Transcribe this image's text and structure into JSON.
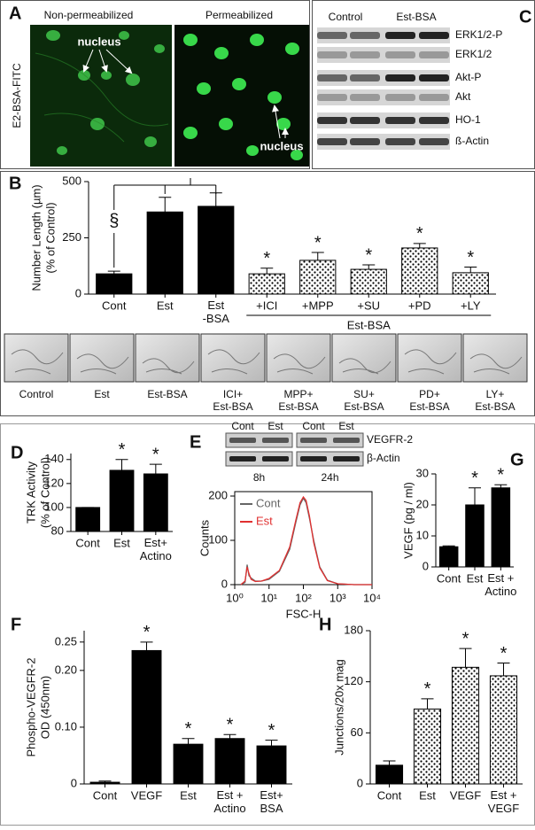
{
  "panel_a": {
    "label": "A",
    "side_label": "E2-BSA-FITC",
    "images": [
      "Non-permeabilized",
      "Permeabilized"
    ],
    "nucleus_labels": [
      "nucleus",
      "nucleus"
    ]
  },
  "panel_c": {
    "label": "C",
    "columns": [
      "Control",
      "Est-BSA"
    ],
    "rows": [
      "ERK1/2-P",
      "ERK1/2",
      "Akt-P",
      "Akt",
      "HO-1",
      "ß-Actin"
    ]
  },
  "panel_b_images": [
    "Control",
    "Est",
    "Est-BSA",
    "ICI+\nEst-BSA",
    "MPP+\nEst-BSA",
    "SU+\nEst-BSA",
    "PD+\nEst-BSA",
    "LY+\nEst-BSA"
  ],
  "panel_e_blot": {
    "label": "E",
    "lanes": [
      "Cont",
      "Est",
      "Cont",
      "Est"
    ],
    "rows": [
      "VEGFR-2",
      "β-Actin"
    ],
    "times": [
      "8h",
      "24h"
    ]
  },
  "chart_data": [
    {
      "type": "bar",
      "panel": "B",
      "y_label": [
        "Number Length (µm)",
        "(% of Control)"
      ],
      "categories": [
        "Cont",
        "Est",
        "Est\n-BSA",
        "+ICI",
        "+MPP",
        "+SU",
        "+PD",
        "+LY"
      ],
      "values": [
        90,
        365,
        390,
        90,
        150,
        110,
        205,
        95
      ],
      "errors": [
        12,
        65,
        60,
        25,
        35,
        20,
        20,
        25
      ],
      "bar_styles": [
        "solid",
        "solid",
        "solid",
        "dotted",
        "dotted",
        "dotted",
        "dotted",
        "dotted"
      ],
      "annotations": [
        null,
        null,
        null,
        "*",
        "*",
        "*",
        "*",
        "*"
      ],
      "bracket_label": "§",
      "group_label": "Est-BSA",
      "ylim": [
        0,
        500
      ],
      "yticks": [
        0,
        250,
        500
      ]
    },
    {
      "type": "bar",
      "panel": "D",
      "y_label": [
        "TRK Activity",
        "(% of Control)"
      ],
      "categories": [
        "Cont",
        "Est",
        "Est+\nActino"
      ],
      "values": [
        100,
        131,
        128
      ],
      "errors": [
        0,
        9,
        8
      ],
      "bar_styles": [
        "solid",
        "solid",
        "solid"
      ],
      "annotations": [
        null,
        "*",
        "*"
      ],
      "ylim": [
        80,
        145
      ],
      "yticks": [
        80,
        100,
        120,
        140
      ]
    },
    {
      "type": "line",
      "logx": true,
      "x_label": "FSC-H",
      "y_label": [
        "Counts"
      ],
      "x": [
        1.5,
        2,
        2.3,
        2.6,
        3,
        4,
        6,
        10,
        20,
        40,
        60,
        80,
        100,
        120,
        150,
        200,
        300,
        500,
        1000,
        3000,
        10000
      ],
      "series": [
        {
          "name": "Cont",
          "color": "#666666",
          "values": [
            0,
            5,
            45,
            20,
            15,
            8,
            8,
            12,
            30,
            80,
            140,
            180,
            195,
            185,
            150,
            100,
            40,
            10,
            2,
            0,
            0
          ]
        },
        {
          "name": "Est",
          "color": "#e03030",
          "values": [
            0,
            8,
            40,
            25,
            12,
            7,
            8,
            14,
            32,
            85,
            145,
            185,
            198,
            190,
            155,
            95,
            38,
            9,
            2,
            0,
            0
          ]
        }
      ],
      "xlim": [
        1,
        10000
      ],
      "xticks": [
        {
          "value": 1,
          "label": "10⁰"
        },
        {
          "value": 10,
          "label": "10¹"
        },
        {
          "value": 100,
          "label": "10²"
        },
        {
          "value": 1000,
          "label": "10³"
        },
        {
          "value": 10000,
          "label": "10⁴"
        }
      ],
      "ylim": [
        0,
        210
      ],
      "yticks": [
        0,
        100,
        200
      ]
    },
    {
      "type": "bar",
      "panel": "G",
      "y_label": [
        "VEGF (pg  / ml)"
      ],
      "categories": [
        "Cont",
        "Est",
        "Est +\nActino"
      ],
      "values": [
        6.5,
        20,
        25.5
      ],
      "errors": [
        0.3,
        5.5,
        1
      ],
      "bar_styles": [
        "solid",
        "solid",
        "solid"
      ],
      "annotations": [
        null,
        "*",
        "*"
      ],
      "ylim": [
        0,
        30
      ],
      "yticks": [
        0,
        10,
        20,
        30
      ]
    },
    {
      "type": "bar",
      "panel": "F",
      "y_label": [
        "Phospho-VEGFR-2",
        "OD (450nm)"
      ],
      "categories": [
        "Cont",
        "VEGF",
        "Est",
        "Est +\nActino",
        "Est+\nBSA"
      ],
      "values": [
        0.003,
        0.235,
        0.07,
        0.08,
        0.067
      ],
      "errors": [
        0.002,
        0.015,
        0.01,
        0.007,
        0.01
      ],
      "bar_styles": [
        "solid",
        "solid",
        "solid",
        "solid",
        "solid"
      ],
      "annotations": [
        null,
        "*",
        "*",
        "*",
        "*"
      ],
      "ylim": [
        0,
        0.27
      ],
      "yticks": [
        0,
        {
          "value": 0.1,
          "label": "0.10"
        },
        {
          "value": 0.2,
          "label": "0.20"
        },
        0.25
      ]
    },
    {
      "type": "bar",
      "panel": "H",
      "y_label": [
        "Junctions/20x mag"
      ],
      "categories": [
        "Cont",
        "Est",
        "VEGF",
        "Est +\nVEGF"
      ],
      "values": [
        22,
        88,
        137,
        127
      ],
      "errors": [
        5,
        12,
        22,
        15
      ],
      "bar_styles": [
        "solid",
        "dotted",
        "dotted",
        "dotted"
      ],
      "annotations": [
        null,
        "*",
        "*",
        "*"
      ],
      "ylim": [
        0,
        180
      ],
      "yticks": [
        0,
        60,
        120,
        180
      ]
    }
  ]
}
